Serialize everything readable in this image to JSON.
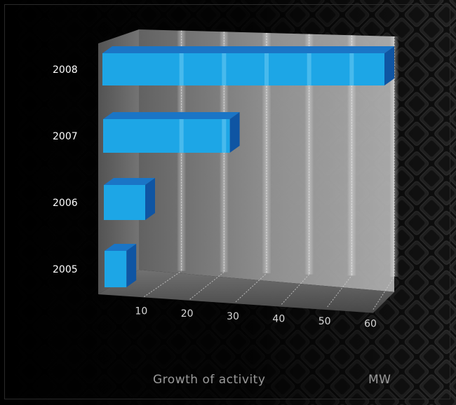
{
  "chart_data": {
    "type": "bar",
    "orientation": "horizontal",
    "style": "3d",
    "categories": [
      "2005",
      "2006",
      "2007",
      "2008"
    ],
    "values": [
      6,
      10,
      28,
      63
    ],
    "x_ticks": [
      10,
      20,
      30,
      40,
      50,
      60
    ],
    "xlim": [
      0,
      60
    ],
    "xlabel": "Growth of activity",
    "unit": "MW",
    "grid": true,
    "legend": "none",
    "colors": {
      "bar_front": "#1da6e6",
      "bar_top": "#1a75c6",
      "bar_side": "#0f55a3",
      "background": "#000000",
      "wall": "#8f8f8f"
    }
  }
}
